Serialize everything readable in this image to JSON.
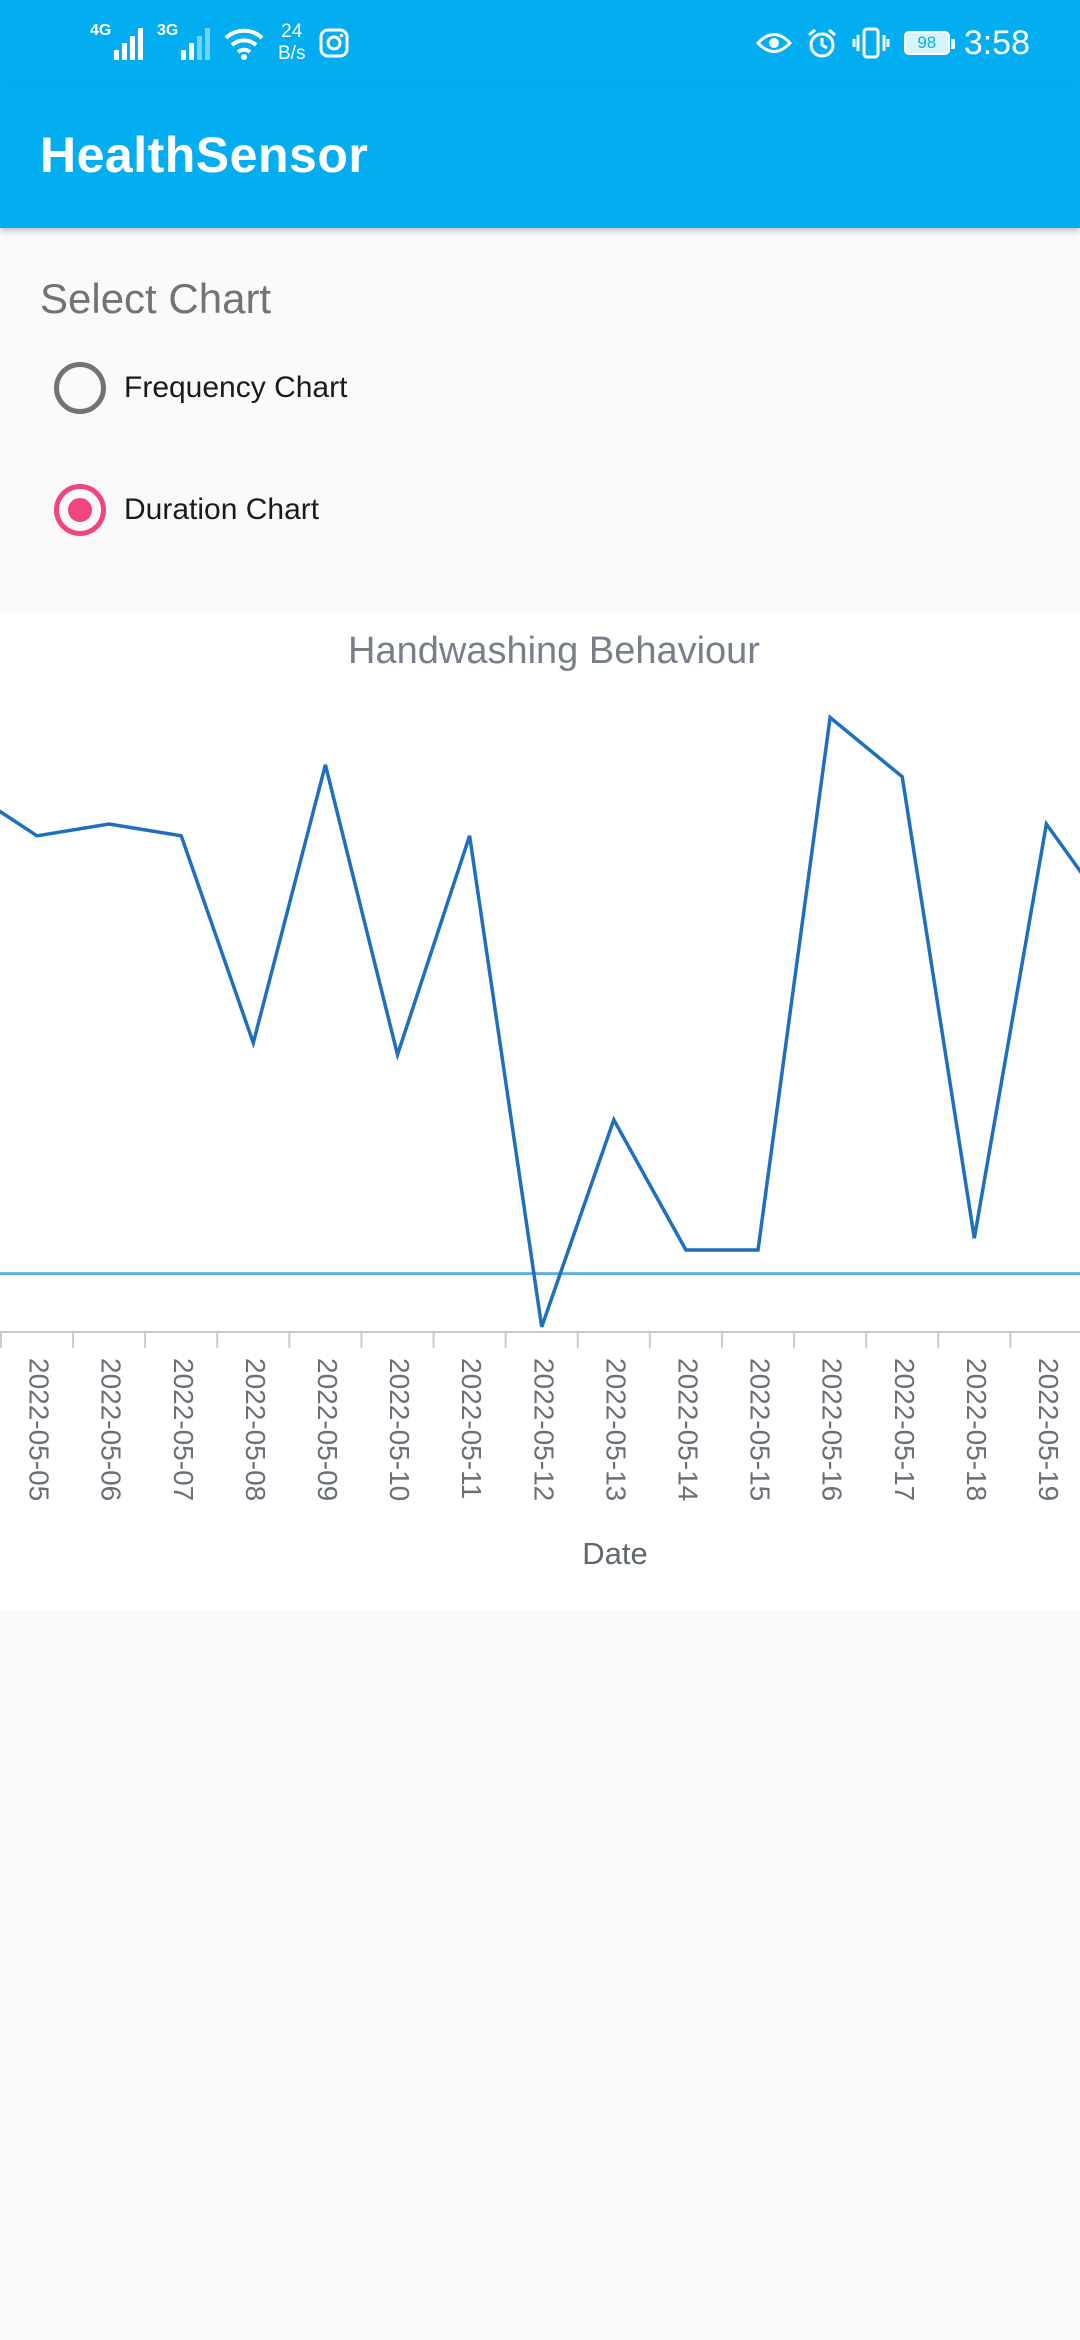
{
  "status_bar": {
    "network_1": "4G",
    "network_2": "3G",
    "speed_value": "24",
    "speed_unit": "B/s",
    "battery": "98",
    "time": "3:58"
  },
  "app_bar": {
    "title": "HealthSensor"
  },
  "chart_selector": {
    "heading": "Select Chart",
    "options": [
      {
        "label": "Frequency Chart",
        "selected": false
      },
      {
        "label": "Duration Chart",
        "selected": true
      }
    ]
  },
  "colors": {
    "accent": "#03aef0",
    "radio_selected": "#f0457e",
    "line": "#1e6fbf",
    "reference_line": "#62aee3"
  },
  "chart_data": {
    "type": "line",
    "title": "Handwashing Behaviour",
    "xlabel": "Date",
    "ylabel": "",
    "x": [
      "2022-05-05",
      "2022-05-06",
      "2022-05-07",
      "2022-05-08",
      "2022-05-09",
      "2022-05-10",
      "2022-05-11",
      "2022-05-12",
      "2022-05-13",
      "2022-05-14",
      "2022-05-15",
      "2022-05-16",
      "2022-05-17",
      "2022-05-18",
      "2022-05-19"
    ],
    "series": [
      {
        "values": [
          0.74,
          0.76,
          0.74,
          0.39,
          0.86,
          0.37,
          0.74,
          -0.09,
          0.26,
          0.04,
          0.04,
          0.94,
          0.84,
          0.06,
          0.76
        ]
      }
    ],
    "edge_values": {
      "before_first": 0.82,
      "after_last": 0.59
    },
    "reference_line": 0,
    "ylim": [
      -0.2,
      1.0
    ],
    "grid": false,
    "legend": "none"
  }
}
